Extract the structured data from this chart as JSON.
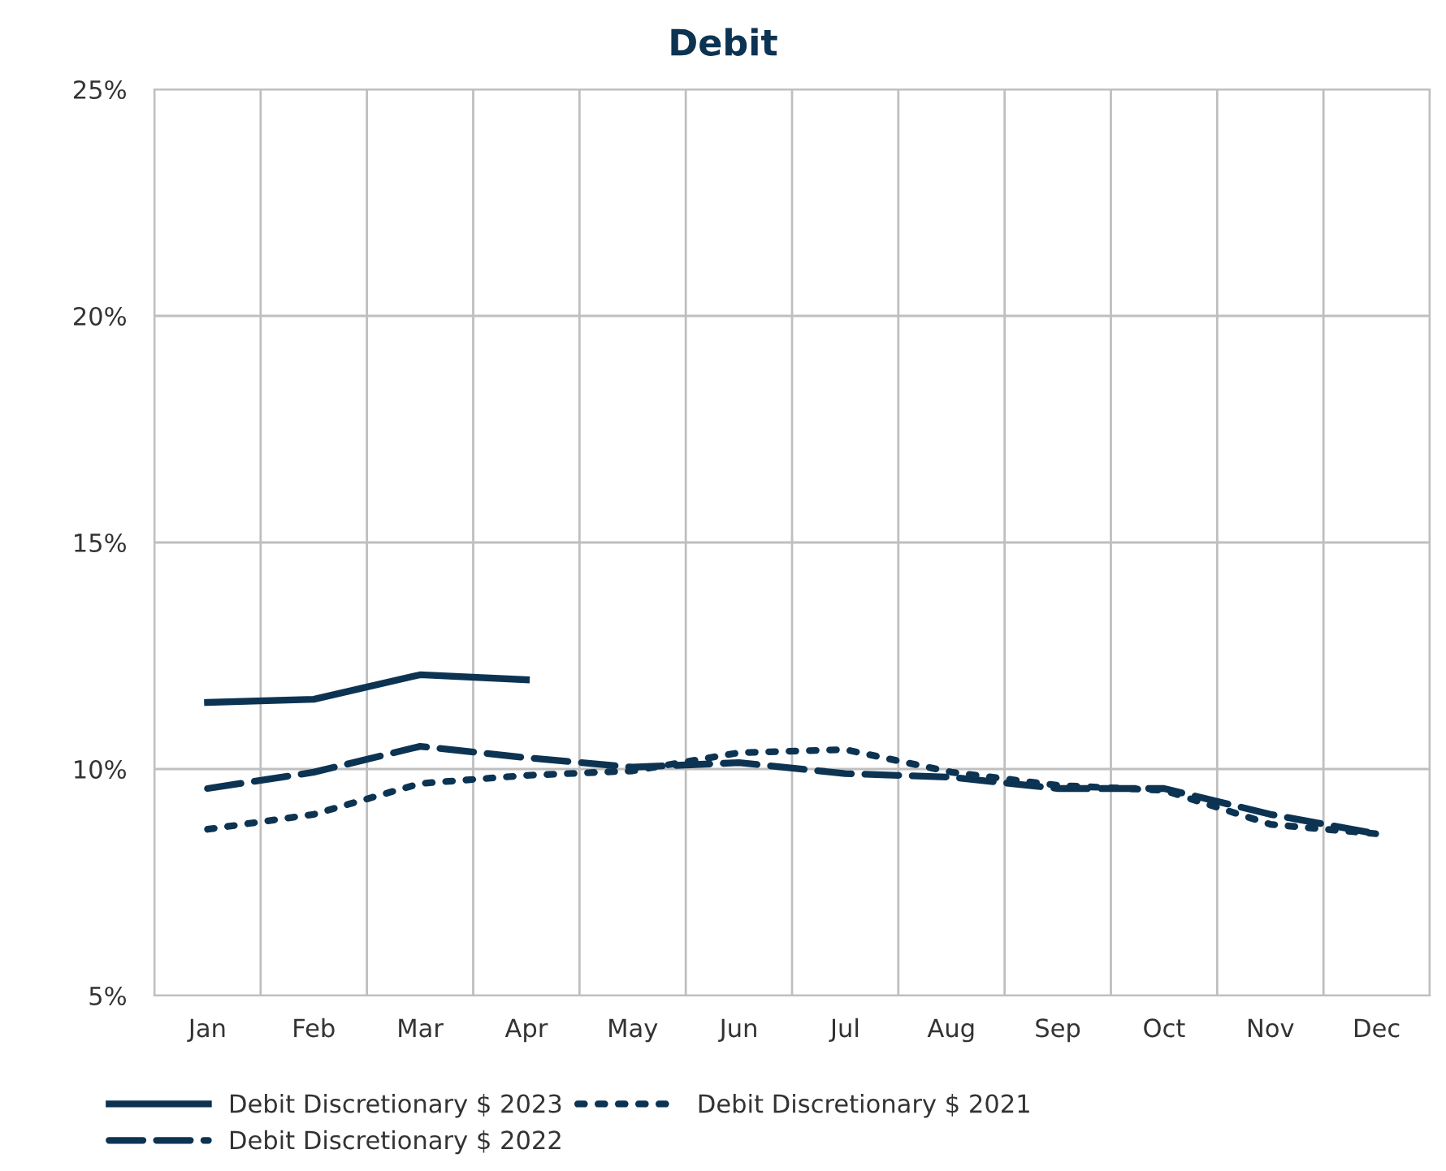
{
  "chart_data": {
    "type": "line",
    "title": "Debit",
    "categories": [
      "Jan",
      "Feb",
      "Mar",
      "Apr",
      "May",
      "Jun",
      "Jul",
      "Aug",
      "Sep",
      "Oct",
      "Nov",
      "Dec"
    ],
    "series": [
      {
        "name": "Debit Discretionary $ 2023",
        "color": "#0c3352",
        "line_style": "solid",
        "values": [
          11.47,
          11.54,
          12.08,
          11.97,
          null,
          null,
          null,
          null,
          null,
          null,
          null,
          null
        ]
      },
      {
        "name": "Debit Discretionary $ 2022",
        "color": "#0c3352",
        "line_style": "dashed",
        "values": [
          9.57,
          9.93,
          10.5,
          10.25,
          10.04,
          10.14,
          9.9,
          9.82,
          9.57,
          9.57,
          9.0,
          8.57
        ]
      },
      {
        "name": "Debit Discretionary $ 2021",
        "color": "#0c3352",
        "line_style": "dotted",
        "values": [
          8.67,
          9.0,
          9.68,
          9.86,
          9.96,
          10.36,
          10.43,
          9.93,
          9.64,
          9.53,
          8.78,
          8.57
        ]
      }
    ],
    "ylim": [
      5,
      25
    ],
    "yticks": [
      {
        "value": 5,
        "label": "5%"
      },
      {
        "value": 10,
        "label": "10%"
      },
      {
        "value": 15,
        "label": "15%"
      },
      {
        "value": 20,
        "label": "20%"
      },
      {
        "value": 25,
        "label": "25%"
      }
    ],
    "grid": true,
    "legend": "bottom",
    "marker": "none"
  }
}
